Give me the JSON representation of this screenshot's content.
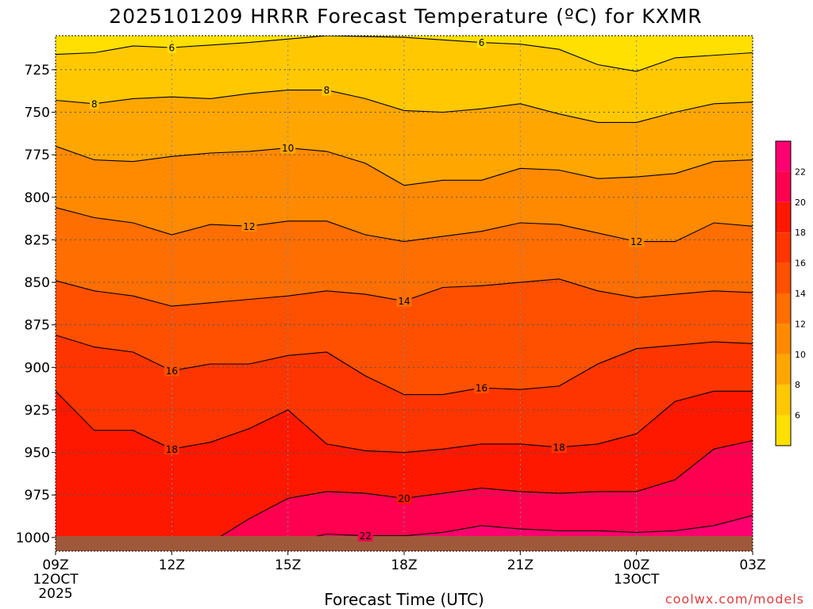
{
  "chart_data": {
    "type": "heatmap",
    "title": "2025101209 HRRR Forecast Temperature (ºC) for KXMR",
    "xlabel": "Forecast Time (UTC)",
    "ylabel": "",
    "x_ticks": [
      {
        "hour": 9,
        "lines": [
          "09Z",
          "12OCT",
          "2025"
        ]
      },
      {
        "hour": 12,
        "lines": [
          "12Z"
        ]
      },
      {
        "hour": 15,
        "lines": [
          "15Z"
        ]
      },
      {
        "hour": 18,
        "lines": [
          "18Z"
        ]
      },
      {
        "hour": 21,
        "lines": [
          "21Z"
        ]
      },
      {
        "hour": 24,
        "lines": [
          "00Z",
          "13OCT"
        ]
      },
      {
        "hour": 27,
        "lines": [
          "03Z"
        ]
      }
    ],
    "xlim": [
      9,
      27
    ],
    "ylim": [
      1008,
      705
    ],
    "y_ticks": [
      725,
      750,
      775,
      800,
      825,
      850,
      875,
      900,
      925,
      950,
      975,
      1000
    ],
    "grid": true,
    "colorbar": {
      "levels": [
        4,
        6,
        8,
        10,
        12,
        14,
        16,
        18,
        20,
        22,
        24
      ],
      "tick_labels": [
        6,
        8,
        10,
        12,
        14,
        16,
        18,
        20,
        22
      ],
      "colors": [
        "#ffe000",
        "#ffc800",
        "#ffa600",
        "#ff8a00",
        "#ff6e00",
        "#ff5000",
        "#ff3500",
        "#ff1800",
        "#ff0050",
        "#ff0070"
      ]
    },
    "ground_color": "#a0583a",
    "contours": [
      {
        "value": 6,
        "label_positions": [
          [
            12,
            713
          ],
          [
            20,
            709
          ]
        ],
        "points": [
          [
            9,
            716
          ],
          [
            10,
            715
          ],
          [
            11,
            711
          ],
          [
            12,
            712
          ],
          [
            14,
            709
          ],
          [
            16,
            705
          ],
          [
            18,
            706
          ],
          [
            20,
            709
          ],
          [
            21,
            710
          ],
          [
            22,
            713
          ],
          [
            23,
            722
          ],
          [
            24,
            726
          ],
          [
            25,
            718
          ],
          [
            27,
            715
          ]
        ]
      },
      {
        "value": 8,
        "label_positions": [
          [
            10,
            745
          ],
          [
            16,
            737
          ]
        ],
        "points": [
          [
            9,
            743
          ],
          [
            10,
            745
          ],
          [
            11,
            742
          ],
          [
            12,
            741
          ],
          [
            13,
            742
          ],
          [
            14,
            739
          ],
          [
            15,
            737
          ],
          [
            16,
            737
          ],
          [
            17,
            742
          ],
          [
            18,
            749
          ],
          [
            19,
            750
          ],
          [
            20,
            748
          ],
          [
            21,
            745
          ],
          [
            22,
            751
          ],
          [
            23,
            756
          ],
          [
            24,
            756
          ],
          [
            25,
            750
          ],
          [
            26,
            745
          ],
          [
            27,
            744
          ]
        ]
      },
      {
        "value": 10,
        "label_positions": [
          [
            15,
            772
          ]
        ],
        "points": [
          [
            9,
            770
          ],
          [
            10,
            778
          ],
          [
            11,
            779
          ],
          [
            12,
            776
          ],
          [
            13,
            774
          ],
          [
            14,
            773
          ],
          [
            15,
            771
          ],
          [
            16,
            773
          ],
          [
            17,
            780
          ],
          [
            18,
            793
          ],
          [
            19,
            790
          ],
          [
            20,
            790
          ],
          [
            21,
            783
          ],
          [
            22,
            784
          ],
          [
            23,
            789
          ],
          [
            24,
            788
          ],
          [
            25,
            786
          ],
          [
            26,
            779
          ],
          [
            27,
            778
          ]
        ]
      },
      {
        "value": 12,
        "label_positions": [
          [
            14,
            817
          ],
          [
            24,
            826
          ]
        ],
        "points": [
          [
            9,
            806
          ],
          [
            10,
            812
          ],
          [
            11,
            815
          ],
          [
            12,
            822
          ],
          [
            13,
            816
          ],
          [
            14,
            817
          ],
          [
            15,
            814
          ],
          [
            16,
            814
          ],
          [
            17,
            822
          ],
          [
            18,
            826
          ],
          [
            19,
            823
          ],
          [
            20,
            820
          ],
          [
            21,
            815
          ],
          [
            22,
            816
          ],
          [
            23,
            821
          ],
          [
            24,
            826
          ],
          [
            25,
            826
          ],
          [
            26,
            815
          ],
          [
            27,
            817
          ]
        ]
      },
      {
        "value": 14,
        "label_positions": [
          [
            18,
            861
          ]
        ],
        "points": [
          [
            9,
            849
          ],
          [
            10,
            855
          ],
          [
            11,
            858
          ],
          [
            12,
            864
          ],
          [
            13,
            862
          ],
          [
            14,
            860
          ],
          [
            15,
            858
          ],
          [
            16,
            855
          ],
          [
            17,
            857
          ],
          [
            18,
            861
          ],
          [
            19,
            853
          ],
          [
            20,
            852
          ],
          [
            21,
            850
          ],
          [
            22,
            848
          ],
          [
            23,
            855
          ],
          [
            24,
            859
          ],
          [
            25,
            857
          ],
          [
            26,
            855
          ],
          [
            27,
            856
          ]
        ]
      },
      {
        "value": 16,
        "label_positions": [
          [
            12,
            902
          ],
          [
            20,
            912
          ]
        ],
        "points": [
          [
            9,
            881
          ],
          [
            10,
            888
          ],
          [
            11,
            891
          ],
          [
            12,
            902
          ],
          [
            13,
            898
          ],
          [
            14,
            898
          ],
          [
            15,
            893
          ],
          [
            16,
            891
          ],
          [
            17,
            905
          ],
          [
            18,
            916
          ],
          [
            19,
            916
          ],
          [
            20,
            912
          ],
          [
            21,
            913
          ],
          [
            22,
            911
          ],
          [
            23,
            898
          ],
          [
            24,
            889
          ],
          [
            25,
            887
          ],
          [
            26,
            885
          ],
          [
            27,
            886
          ]
        ]
      },
      {
        "value": 18,
        "label_positions": [
          [
            12,
            948
          ],
          [
            22,
            947
          ]
        ],
        "points": [
          [
            9,
            914
          ],
          [
            10,
            937
          ],
          [
            11,
            937
          ],
          [
            12,
            948
          ],
          [
            13,
            944
          ],
          [
            14,
            936
          ],
          [
            15,
            925
          ],
          [
            16,
            945
          ],
          [
            17,
            949
          ],
          [
            18,
            950
          ],
          [
            19,
            948
          ],
          [
            20,
            945
          ],
          [
            21,
            945
          ],
          [
            22,
            947
          ],
          [
            23,
            945
          ],
          [
            24,
            939
          ],
          [
            25,
            920
          ],
          [
            26,
            914
          ],
          [
            27,
            914
          ]
        ]
      },
      {
        "value": 20,
        "label_positions": [
          [
            18,
            977
          ]
        ],
        "points": [
          [
            13,
            1003
          ],
          [
            14,
            989
          ],
          [
            15,
            977
          ],
          [
            16,
            973
          ],
          [
            17,
            974
          ],
          [
            18,
            977
          ],
          [
            19,
            974
          ],
          [
            20,
            971
          ],
          [
            21,
            973
          ],
          [
            22,
            974
          ],
          [
            23,
            973
          ],
          [
            24,
            973
          ],
          [
            25,
            966
          ],
          [
            26,
            948
          ],
          [
            27,
            943
          ]
        ]
      },
      {
        "value": 22,
        "label_positions": [
          [
            17,
            1000
          ]
        ],
        "points": [
          [
            15,
            1003
          ],
          [
            16,
            998
          ],
          [
            17,
            999
          ],
          [
            18,
            999
          ],
          [
            19,
            997
          ],
          [
            20,
            993
          ],
          [
            21,
            995
          ],
          [
            22,
            996
          ],
          [
            23,
            996
          ],
          [
            24,
            997
          ],
          [
            25,
            996
          ],
          [
            26,
            993
          ],
          [
            27,
            987
          ]
        ]
      }
    ]
  },
  "credit": "coolwx.com/models"
}
